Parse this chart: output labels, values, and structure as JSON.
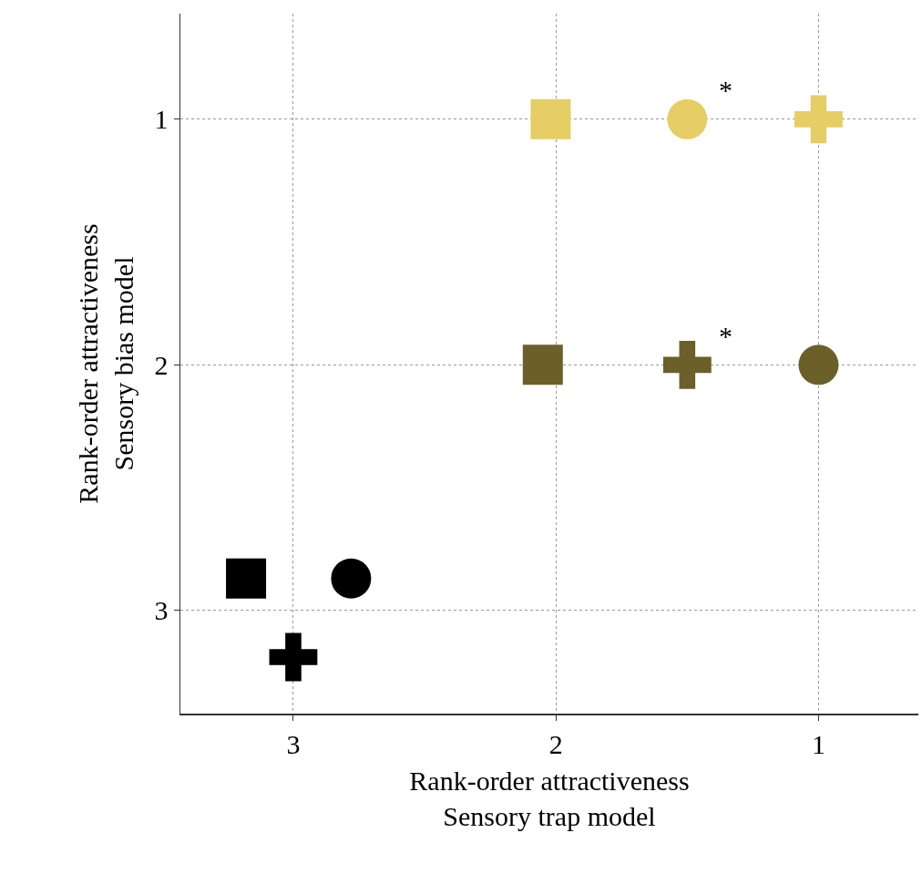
{
  "chart_data": {
    "type": "scatter",
    "xlabel": "Rank-order attractiveness\nSensory trap model",
    "ylabel": "Rank-order attractiveness\nSensory bias model",
    "xlim": [
      3.43,
      0.62
    ],
    "ylim": [
      3.42,
      0.57
    ],
    "xticks": [
      3,
      2,
      1
    ],
    "yticks": [
      1,
      2,
      3
    ],
    "grid": true,
    "series": [
      {
        "marker": "square",
        "x": [
          2.02,
          2.05,
          3.18
        ],
        "values": [
          1,
          2,
          2.87
        ],
        "colors": [
          "#e6cd66",
          "#6b5f2a",
          "#000000"
        ]
      },
      {
        "marker": "circle",
        "x": [
          1.5,
          1,
          2.78
        ],
        "values": [
          1,
          2,
          2.87
        ],
        "colors": [
          "#e6cd66",
          "#6b5f2a",
          "#000000"
        ]
      },
      {
        "marker": "cross",
        "x": [
          1,
          1.5,
          3
        ],
        "values": [
          1,
          2,
          3.19
        ],
        "colors": [
          "#e6cd66",
          "#6b5f2a",
          "#000000"
        ]
      }
    ],
    "annotations": [
      {
        "text": "*",
        "x": 1.5,
        "y": 1
      },
      {
        "text": "*",
        "x": 1.5,
        "y": 2
      }
    ]
  }
}
